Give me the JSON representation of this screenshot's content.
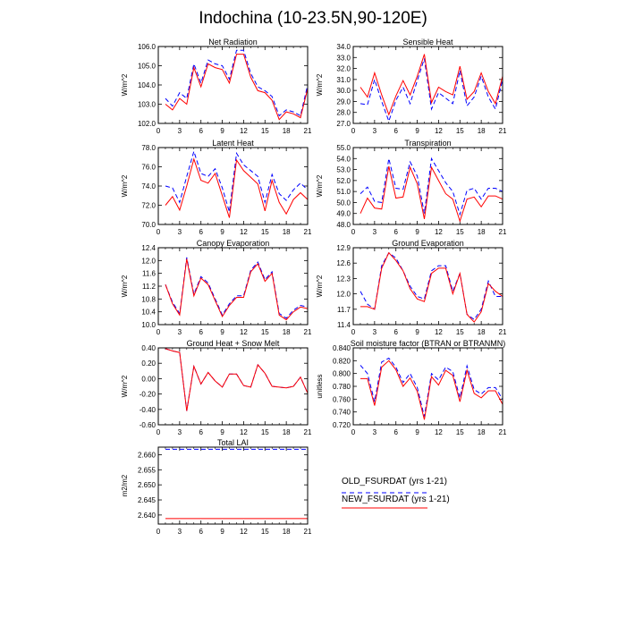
{
  "figure": {
    "title": "Indochina (10-23.5N,90-120E)"
  },
  "legend": {
    "entries": [
      {
        "label": "OLD_FSURDAT (yrs 1-21)",
        "color": "#0000ff",
        "style": "dashed"
      },
      {
        "label": "NEW_FSURDAT (yrs 1-21)",
        "color": "#ff0000",
        "style": "solid"
      }
    ]
  },
  "chart_data": [
    {
      "type": "line",
      "title": "Net Radiation",
      "ylabel": "W/m^2",
      "xlim": [
        0,
        21
      ],
      "xticks": [
        0,
        3,
        6,
        9,
        12,
        15,
        18,
        21
      ],
      "ylim": [
        102.0,
        106.0
      ],
      "yticks": [
        102.0,
        103.0,
        104.0,
        105.0,
        106.0
      ],
      "ytick_labels": [
        "102.0",
        "103.0",
        "104.0",
        "105.0",
        "106.0"
      ],
      "x": [
        1,
        2,
        3,
        4,
        5,
        6,
        7,
        8,
        9,
        10,
        11,
        12,
        13,
        14,
        15,
        16,
        17,
        18,
        19,
        20,
        21
      ],
      "series": [
        {
          "name": "OLD_FSURDAT (yrs 1-21)",
          "color": "#0000ff",
          "style": "dashed",
          "values": [
            103.3,
            102.9,
            103.6,
            103.3,
            105.1,
            104.1,
            105.3,
            105.1,
            105.0,
            104.3,
            105.8,
            105.8,
            104.6,
            103.9,
            103.7,
            103.4,
            102.4,
            102.7,
            102.6,
            102.4,
            104.0
          ]
        },
        {
          "name": "NEW_FSURDAT (yrs 1-21)",
          "color": "#ff0000",
          "style": "solid",
          "values": [
            103.0,
            102.7,
            103.3,
            103.0,
            104.9,
            103.9,
            105.1,
            104.9,
            104.8,
            104.1,
            105.6,
            105.6,
            104.4,
            103.7,
            103.6,
            103.2,
            102.2,
            102.6,
            102.5,
            102.3,
            103.8
          ]
        }
      ]
    },
    {
      "type": "line",
      "title": "Sensible Heat",
      "ylabel": "W/m^2",
      "xlim": [
        0,
        21
      ],
      "xticks": [
        0,
        3,
        6,
        9,
        12,
        15,
        18,
        21
      ],
      "ylim": [
        27.0,
        34.0
      ],
      "yticks": [
        27,
        28,
        29,
        30,
        31,
        32,
        33,
        34
      ],
      "ytick_labels": [
        "27.0",
        "28.0",
        "29.0",
        "30.0",
        "31.0",
        "32.0",
        "33.0",
        "34.0"
      ],
      "x": [
        1,
        2,
        3,
        4,
        5,
        6,
        7,
        8,
        9,
        10,
        11,
        12,
        13,
        14,
        15,
        16,
        17,
        18,
        19,
        20,
        21
      ],
      "series": [
        {
          "name": "OLD_FSURDAT (yrs 1-21)",
          "color": "#0000ff",
          "style": "dashed",
          "values": [
            28.8,
            28.7,
            31.0,
            29.0,
            27.2,
            29.1,
            30.3,
            28.8,
            30.9,
            32.9,
            28.3,
            29.8,
            29.3,
            28.8,
            31.8,
            28.6,
            29.4,
            31.3,
            29.4,
            28.3,
            31.0
          ]
        },
        {
          "name": "NEW_FSURDAT (yrs 1-21)",
          "color": "#ff0000",
          "style": "solid",
          "values": [
            30.3,
            29.4,
            31.6,
            29.6,
            27.8,
            29.5,
            30.9,
            29.6,
            31.3,
            33.3,
            28.9,
            30.3,
            29.9,
            29.6,
            32.2,
            29.2,
            29.9,
            31.6,
            29.9,
            28.8,
            31.3
          ]
        }
      ]
    },
    {
      "type": "line",
      "title": "Latent Heat",
      "ylabel": "W/m^2",
      "xlim": [
        0,
        21
      ],
      "xticks": [
        0,
        3,
        6,
        9,
        12,
        15,
        18,
        21
      ],
      "ylim": [
        70.0,
        78.0
      ],
      "yticks": [
        70,
        72,
        74,
        76,
        78
      ],
      "ytick_labels": [
        "70.0",
        "72.0",
        "74.0",
        "76.0",
        "78.0"
      ],
      "x": [
        1,
        2,
        3,
        4,
        5,
        6,
        7,
        8,
        9,
        10,
        11,
        12,
        13,
        14,
        15,
        16,
        17,
        18,
        19,
        20,
        21
      ],
      "series": [
        {
          "name": "OLD_FSURDAT (yrs 1-21)",
          "color": "#0000ff",
          "style": "dashed",
          "values": [
            74.0,
            73.8,
            72.3,
            75.0,
            77.6,
            75.3,
            75.0,
            75.8,
            73.8,
            71.3,
            77.4,
            76.2,
            75.6,
            75.0,
            72.3,
            75.2,
            73.2,
            72.5,
            73.6,
            74.3,
            73.6
          ]
        },
        {
          "name": "NEW_FSURDAT (yrs 1-21)",
          "color": "#ff0000",
          "style": "solid",
          "values": [
            72.0,
            72.9,
            71.5,
            74.0,
            76.8,
            74.6,
            74.3,
            75.3,
            73.0,
            70.7,
            76.7,
            75.6,
            74.9,
            74.2,
            71.4,
            74.6,
            72.3,
            71.1,
            72.6,
            73.3,
            72.6
          ]
        }
      ]
    },
    {
      "type": "line",
      "title": "Transpiration",
      "ylabel": "W/m^2",
      "xlim": [
        0,
        21
      ],
      "xticks": [
        0,
        3,
        6,
        9,
        12,
        15,
        18,
        21
      ],
      "ylim": [
        48.0,
        55.0
      ],
      "yticks": [
        48,
        49,
        50,
        51,
        52,
        53,
        54,
        55
      ],
      "ytick_labels": [
        "48.0",
        "49.0",
        "50.0",
        "51.0",
        "52.0",
        "53.0",
        "54.0",
        "55.0"
      ],
      "x": [
        1,
        2,
        3,
        4,
        5,
        6,
        7,
        8,
        9,
        10,
        11,
        12,
        13,
        14,
        15,
        16,
        17,
        18,
        19,
        20,
        21
      ],
      "series": [
        {
          "name": "OLD_FSURDAT (yrs 1-21)",
          "color": "#0000ff",
          "style": "dashed",
          "values": [
            50.8,
            51.4,
            50.1,
            50.0,
            54.0,
            51.3,
            51.2,
            53.7,
            52.4,
            49.0,
            54.0,
            52.9,
            51.8,
            51.0,
            48.9,
            51.1,
            51.3,
            50.3,
            51.3,
            51.3,
            51.0
          ]
        },
        {
          "name": "NEW_FSURDAT (yrs 1-21)",
          "color": "#ff0000",
          "style": "solid",
          "values": [
            49.0,
            50.4,
            49.5,
            49.4,
            53.3,
            50.4,
            50.5,
            53.2,
            51.7,
            48.5,
            53.2,
            52.0,
            50.8,
            50.3,
            48.3,
            50.3,
            50.5,
            49.6,
            50.6,
            50.6,
            50.3
          ]
        }
      ]
    },
    {
      "type": "line",
      "title": "Canopy Evaporation",
      "ylabel": "W/m^2",
      "xlim": [
        0,
        21
      ],
      "xticks": [
        0,
        3,
        6,
        9,
        12,
        15,
        18,
        21
      ],
      "ylim": [
        10.0,
        12.4
      ],
      "yticks": [
        10.0,
        10.4,
        10.8,
        11.2,
        11.6,
        12.0,
        12.4
      ],
      "ytick_labels": [
        "10.0",
        "10.4",
        "10.8",
        "11.2",
        "11.6",
        "12.0",
        "12.4"
      ],
      "x": [
        1,
        2,
        3,
        4,
        5,
        6,
        7,
        8,
        9,
        10,
        11,
        12,
        13,
        14,
        15,
        16,
        17,
        18,
        19,
        20,
        21
      ],
      "series": [
        {
          "name": "OLD_FSURDAT (yrs 1-21)",
          "color": "#0000ff",
          "style": "dashed",
          "values": [
            11.25,
            10.7,
            10.35,
            12.1,
            10.95,
            11.5,
            11.3,
            10.8,
            10.3,
            10.65,
            10.9,
            10.9,
            11.7,
            11.95,
            11.4,
            11.65,
            10.35,
            10.2,
            10.45,
            10.6,
            10.55
          ]
        },
        {
          "name": "NEW_FSURDAT (yrs 1-21)",
          "color": "#ff0000",
          "style": "solid",
          "values": [
            11.25,
            10.65,
            10.3,
            12.05,
            10.9,
            11.45,
            11.25,
            10.75,
            10.25,
            10.6,
            10.85,
            10.85,
            11.65,
            11.9,
            11.35,
            11.6,
            10.3,
            10.15,
            10.4,
            10.55,
            10.5
          ]
        }
      ]
    },
    {
      "type": "line",
      "title": "Ground Evaporation",
      "ylabel": "W/m^2",
      "xlim": [
        0,
        21
      ],
      "xticks": [
        0,
        3,
        6,
        9,
        12,
        15,
        18,
        21
      ],
      "ylim": [
        11.4,
        12.9
      ],
      "yticks": [
        11.4,
        11.7,
        12.0,
        12.3,
        12.6,
        12.9
      ],
      "ytick_labels": [
        "11.4",
        "11.7",
        "12.0",
        "12.3",
        "12.6",
        "12.9"
      ],
      "x": [
        1,
        2,
        3,
        4,
        5,
        6,
        7,
        8,
        9,
        10,
        11,
        12,
        13,
        14,
        15,
        16,
        17,
        18,
        19,
        20,
        21
      ],
      "series": [
        {
          "name": "OLD_FSURDAT (yrs 1-21)",
          "color": "#0000ff",
          "style": "dashed",
          "values": [
            12.05,
            11.8,
            11.7,
            12.55,
            12.8,
            12.7,
            12.45,
            12.15,
            11.95,
            11.9,
            12.45,
            12.55,
            12.55,
            12.05,
            12.4,
            11.6,
            11.5,
            11.7,
            12.25,
            11.95,
            11.95
          ]
        },
        {
          "name": "NEW_FSURDAT (yrs 1-21)",
          "color": "#ff0000",
          "style": "solid",
          "values": [
            11.75,
            11.75,
            11.7,
            12.5,
            12.8,
            12.65,
            12.45,
            12.1,
            11.9,
            11.85,
            12.4,
            12.5,
            12.5,
            12.0,
            12.4,
            11.6,
            11.45,
            11.65,
            12.2,
            12.05,
            11.95
          ]
        }
      ]
    },
    {
      "type": "line",
      "title": "Ground Heat + Snow Melt",
      "ylabel": "W/m^2",
      "xlim": [
        0,
        21
      ],
      "xticks": [
        0,
        3,
        6,
        9,
        12,
        15,
        18,
        21
      ],
      "ylim": [
        -0.6,
        0.4
      ],
      "yticks": [
        -0.6,
        -0.4,
        -0.2,
        0.0,
        0.2,
        0.4
      ],
      "ytick_labels": [
        "-0.60",
        "-0.40",
        "-0.20",
        "0.00",
        "0.20",
        "0.40"
      ],
      "x": [
        1,
        2,
        3,
        4,
        5,
        6,
        7,
        8,
        9,
        10,
        11,
        12,
        13,
        14,
        15,
        16,
        17,
        18,
        19,
        20,
        21
      ],
      "series": [
        {
          "name": "OLD_FSURDAT (yrs 1-21)",
          "color": "#0000ff",
          "style": "dashed",
          "values": [
            0.39,
            0.36,
            0.34,
            -0.42,
            0.16,
            -0.07,
            0.08,
            -0.03,
            -0.11,
            0.06,
            0.06,
            -0.09,
            -0.11,
            0.18,
            0.07,
            -0.1,
            -0.11,
            -0.12,
            -0.1,
            0.02,
            -0.19
          ]
        },
        {
          "name": "NEW_FSURDAT (yrs 1-21)",
          "color": "#ff0000",
          "style": "solid",
          "values": [
            0.39,
            0.36,
            0.34,
            -0.42,
            0.16,
            -0.07,
            0.08,
            -0.03,
            -0.11,
            0.06,
            0.06,
            -0.09,
            -0.11,
            0.18,
            0.07,
            -0.1,
            -0.11,
            -0.12,
            -0.1,
            0.02,
            -0.19
          ]
        }
      ]
    },
    {
      "type": "line",
      "title": "Soil moisture factor (BTRAN or BTRANMN)",
      "ylabel": "unitless",
      "xlim": [
        0,
        21
      ],
      "xticks": [
        0,
        3,
        6,
        9,
        12,
        15,
        18,
        21
      ],
      "ylim": [
        0.72,
        0.84
      ],
      "yticks": [
        0.72,
        0.74,
        0.76,
        0.78,
        0.8,
        0.82,
        0.84
      ],
      "ytick_labels": [
        "0.720",
        "0.740",
        "0.760",
        "0.780",
        "0.800",
        "0.820",
        "0.840"
      ],
      "x": [
        1,
        2,
        3,
        4,
        5,
        6,
        7,
        8,
        9,
        10,
        11,
        12,
        13,
        14,
        15,
        16,
        17,
        18,
        19,
        20,
        21
      ],
      "series": [
        {
          "name": "OLD_FSURDAT (yrs 1-21)",
          "color": "#0000ff",
          "style": "dashed",
          "values": [
            0.813,
            0.8,
            0.756,
            0.818,
            0.824,
            0.81,
            0.786,
            0.8,
            0.778,
            0.733,
            0.8,
            0.79,
            0.81,
            0.803,
            0.762,
            0.812,
            0.775,
            0.768,
            0.778,
            0.778,
            0.76
          ]
        },
        {
          "name": "NEW_FSURDAT (yrs 1-21)",
          "color": "#ff0000",
          "style": "solid",
          "values": [
            0.792,
            0.792,
            0.75,
            0.81,
            0.82,
            0.806,
            0.78,
            0.793,
            0.772,
            0.728,
            0.795,
            0.782,
            0.805,
            0.797,
            0.756,
            0.805,
            0.769,
            0.762,
            0.773,
            0.773,
            0.752
          ]
        }
      ]
    },
    {
      "type": "line",
      "title": "Total LAI",
      "ylabel": "m2/m2",
      "xlim": [
        0,
        21
      ],
      "xticks": [
        0,
        3,
        6,
        9,
        12,
        15,
        18,
        21
      ],
      "ylim": [
        2.637,
        2.6625
      ],
      "yticks": [
        2.64,
        2.645,
        2.65,
        2.655,
        2.66
      ],
      "ytick_labels": [
        "2.640",
        "2.645",
        "2.650",
        "2.655",
        "2.660"
      ],
      "x": [
        1,
        2,
        3,
        4,
        5,
        6,
        7,
        8,
        9,
        10,
        11,
        12,
        13,
        14,
        15,
        16,
        17,
        18,
        19,
        20,
        21
      ],
      "series": [
        {
          "name": "OLD_FSURDAT (yrs 1-21)",
          "color": "#0000ff",
          "style": "dashed",
          "values": [
            2.6618,
            2.6618,
            2.6618,
            2.6618,
            2.6618,
            2.6618,
            2.6618,
            2.6618,
            2.6618,
            2.6618,
            2.6618,
            2.6618,
            2.6618,
            2.6618,
            2.6618,
            2.6618,
            2.6618,
            2.6618,
            2.6618,
            2.6618,
            2.6618
          ]
        },
        {
          "name": "NEW_FSURDAT (yrs 1-21)",
          "color": "#ff0000",
          "style": "solid",
          "values": [
            2.6388,
            2.6388,
            2.6388,
            2.6388,
            2.6388,
            2.6388,
            2.6388,
            2.6388,
            2.6388,
            2.6388,
            2.6388,
            2.6388,
            2.6388,
            2.6388,
            2.6388,
            2.6388,
            2.6388,
            2.6388,
            2.6388,
            2.6388,
            2.6388
          ]
        }
      ]
    }
  ]
}
